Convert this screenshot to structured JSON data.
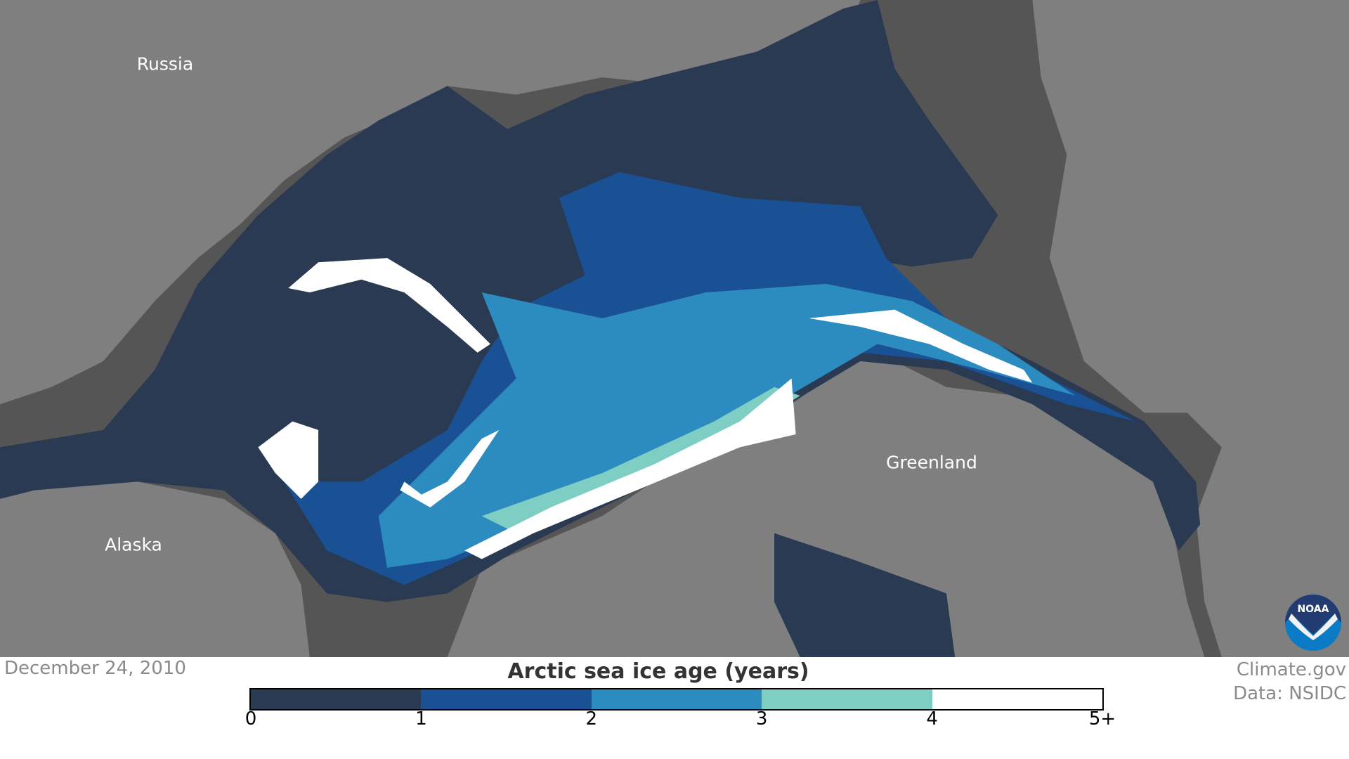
{
  "map": {
    "labels": {
      "russia": "Russia",
      "alaska": "Alaska",
      "greenland": "Greenland"
    },
    "colors": {
      "land": "#7f7f7f",
      "open_water": "#555555",
      "ice_0_1": "#293a52",
      "ice_1_2": "#1a5194",
      "ice_2_3": "#2c8bbf",
      "ice_3_4": "#7ecec4",
      "ice_5_plus": "#ffffff"
    }
  },
  "date": "December 24, 2010",
  "credit": {
    "line1": "Climate.gov",
    "line2": "Data: NSIDC"
  },
  "logo": "NOAA",
  "legend": {
    "title": "Arctic sea ice age (years)",
    "colors": [
      "#293a52",
      "#1a5194",
      "#2c8bbf",
      "#7ecec4",
      "#ffffff"
    ],
    "ticks": [
      "0",
      "1",
      "2",
      "3",
      "4",
      "5+"
    ]
  }
}
